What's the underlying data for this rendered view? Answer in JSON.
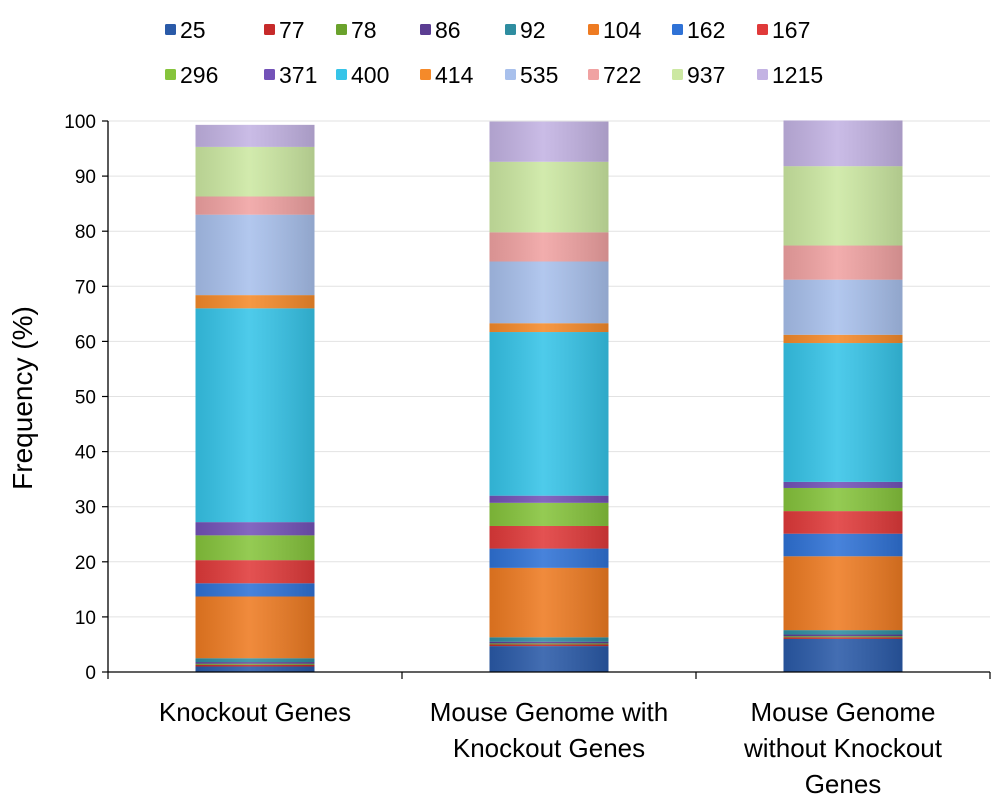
{
  "chart_data": {
    "type": "bar",
    "stacked": true,
    "title": "",
    "xlabel": "",
    "ylabel": "Frequency (%)",
    "ylim": [
      0,
      100
    ],
    "yticks": [
      0,
      10,
      20,
      30,
      40,
      50,
      60,
      70,
      80,
      90,
      100
    ],
    "grid": "horizontal",
    "legend_position": "top",
    "categories": [
      [
        "Knockout Genes"
      ],
      [
        "Mouse Genome with",
        "Knockout Genes"
      ],
      [
        "Mouse Genome",
        "without Knockout",
        "Genes"
      ]
    ],
    "series": [
      {
        "name": "25",
        "color": "#2a5aa8",
        "values": [
          1.0,
          4.7,
          6.0
        ]
      },
      {
        "name": "77",
        "color": "#c62a2a",
        "values": [
          0.3,
          0.3,
          0.3
        ]
      },
      {
        "name": "78",
        "color": "#6aa22c",
        "values": [
          0.2,
          0.2,
          0.2
        ]
      },
      {
        "name": "86",
        "color": "#5b3d92",
        "values": [
          0.3,
          0.3,
          0.3
        ]
      },
      {
        "name": "92",
        "color": "#2e8da0",
        "values": [
          0.7,
          0.8,
          0.8
        ]
      },
      {
        "name": "104",
        "color": "#ee7b22",
        "values": [
          11.2,
          12.6,
          13.4
        ]
      },
      {
        "name": "162",
        "color": "#2f72d6",
        "values": [
          2.4,
          3.5,
          4.1
        ]
      },
      {
        "name": "167",
        "color": "#e03a3a",
        "values": [
          4.2,
          4.1,
          4.1
        ]
      },
      {
        "name": "296",
        "color": "#86c43c",
        "values": [
          4.5,
          4.2,
          4.2
        ]
      },
      {
        "name": "371",
        "color": "#7352b8",
        "values": [
          2.4,
          1.3,
          1.1
        ]
      },
      {
        "name": "400",
        "color": "#36c4e8",
        "values": [
          38.8,
          29.7,
          25.2
        ]
      },
      {
        "name": "414",
        "color": "#f58a2a",
        "values": [
          2.4,
          1.6,
          1.5
        ]
      },
      {
        "name": "535",
        "color": "#a8c0ec",
        "values": [
          14.6,
          11.2,
          10.0
        ]
      },
      {
        "name": "722",
        "color": "#f0a2a2",
        "values": [
          3.3,
          5.3,
          6.2
        ]
      },
      {
        "name": "937",
        "color": "#cce8a2",
        "values": [
          9.0,
          12.8,
          14.4
        ]
      },
      {
        "name": "1215",
        "color": "#c3b3e3",
        "values": [
          4.0,
          7.3,
          8.3
        ]
      }
    ]
  }
}
